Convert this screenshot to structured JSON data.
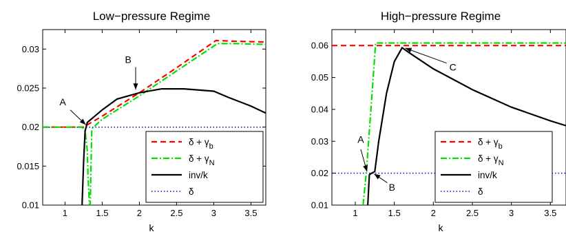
{
  "chart_data": [
    {
      "type": "line",
      "title": "Low−pressure Regime",
      "xlabel": "k",
      "ylabel": "",
      "xlim": [
        0.7,
        3.7
      ],
      "ylim": [
        0.01,
        0.0325
      ],
      "xticks": [
        "1",
        "1.5",
        "2",
        "2.5",
        "3",
        "3.5"
      ],
      "xtick_values": [
        1,
        1.5,
        2,
        2.5,
        3,
        3.5
      ],
      "yticks": [
        "0.01",
        "0.015",
        "0.02",
        "0.025",
        "0.03"
      ],
      "ytick_values": [
        0.01,
        0.015,
        0.02,
        0.025,
        0.03
      ],
      "legend_position": "lower-right",
      "legend": [
        {
          "main": "δ + γ",
          "sub": "b"
        },
        {
          "main": "δ + γ",
          "sub": "N"
        },
        {
          "main": "inv/k",
          "sub": ""
        },
        {
          "main": "δ",
          "sub": ""
        }
      ],
      "series": [
        {
          "color": "#ff0000",
          "dash": "8,5",
          "points": [
            [
              0.7,
              0.02
            ],
            [
              1.27,
              0.02
            ],
            [
              1.3,
              0.0203
            ],
            [
              1.5,
              0.0214
            ],
            [
              2,
              0.0244
            ],
            [
              2.5,
              0.0276
            ],
            [
              3.03,
              0.0311
            ],
            [
              3.3,
              0.031
            ],
            [
              3.7,
              0.0309
            ]
          ]
        },
        {
          "color": "#00dd00",
          "dash": "9,3,2,3",
          "points": [
            [
              0.7,
              0.02
            ],
            [
              1.23,
              0.02
            ],
            [
              1.27,
              0.0195
            ],
            [
              1.3,
              0.017
            ],
            [
              1.31,
              0.0135
            ],
            [
              1.33,
              0.01
            ],
            [
              1.34,
              0.0102
            ],
            [
              1.36,
              0.0198
            ],
            [
              1.5,
              0.021
            ],
            [
              2,
              0.024
            ],
            [
              2.5,
              0.0272
            ],
            [
              3.05,
              0.0307
            ],
            [
              3.3,
              0.0307
            ],
            [
              3.7,
              0.0306
            ]
          ]
        },
        {
          "color": "#000000",
          "dash": "",
          "points": [
            [
              1.23,
              0.01
            ],
            [
              1.25,
              0.0155
            ],
            [
              1.27,
              0.0195
            ],
            [
              1.3,
              0.0206
            ],
            [
              1.4,
              0.0214
            ],
            [
              1.5,
              0.0222
            ],
            [
              1.7,
              0.0236
            ],
            [
              2,
              0.0244
            ],
            [
              2.3,
              0.0249
            ],
            [
              2.6,
              0.0249
            ],
            [
              3,
              0.0246
            ],
            [
              3.2,
              0.0238
            ],
            [
              3.5,
              0.0227
            ],
            [
              3.7,
              0.0218
            ]
          ]
        },
        {
          "color": "#0000cc",
          "dash": "1.5,3",
          "points": [
            [
              0.7,
              0.02
            ],
            [
              3.7,
              0.02
            ]
          ]
        }
      ],
      "annotations": [
        {
          "label": "A",
          "label_at": [
            0.97,
            0.0228
          ],
          "arrow_from": [
            1.07,
            0.0222
          ],
          "arrow_to": [
            1.28,
            0.0203
          ]
        },
        {
          "label": "B",
          "label_at": [
            1.85,
            0.0282
          ],
          "arrow_from": [
            1.95,
            0.0277
          ],
          "arrow_to": [
            1.95,
            0.0248
          ]
        }
      ]
    },
    {
      "type": "line",
      "title": "High−pressure Regime",
      "xlabel": "k",
      "ylabel": "",
      "xlim": [
        0.7,
        3.7
      ],
      "ylim": [
        0.01,
        0.065
      ],
      "xticks": [
        "1",
        "1.5",
        "2",
        "2.5",
        "3",
        "3.5"
      ],
      "xtick_values": [
        1,
        1.5,
        2,
        2.5,
        3,
        3.5
      ],
      "yticks": [
        "0.01",
        "0.02",
        "0.03",
        "0.04",
        "0.05",
        "0.06"
      ],
      "ytick_values": [
        0.01,
        0.02,
        0.03,
        0.04,
        0.05,
        0.06
      ],
      "legend_position": "lower-right",
      "legend": [
        {
          "main": "δ + γ",
          "sub": "b"
        },
        {
          "main": "δ + γ",
          "sub": "N"
        },
        {
          "main": "inv/k",
          "sub": ""
        },
        {
          "main": "δ",
          "sub": ""
        }
      ],
      "series": [
        {
          "color": "#ff0000",
          "dash": "8,5",
          "points": [
            [
              0.7,
              0.06
            ],
            [
              3.7,
              0.06
            ]
          ]
        },
        {
          "color": "#00dd00",
          "dash": "9,3,2,3",
          "points": [
            [
              1.1,
              0.01
            ],
            [
              1.14,
              0.02
            ],
            [
              1.2,
              0.04
            ],
            [
              1.26,
              0.0608
            ],
            [
              1.3,
              0.0608
            ],
            [
              3.7,
              0.0608
            ]
          ]
        },
        {
          "color": "#000000",
          "dash": "",
          "points": [
            [
              1.16,
              0.01
            ],
            [
              1.18,
              0.0195
            ],
            [
              1.21,
              0.02
            ],
            [
              1.25,
              0.0205
            ],
            [
              1.3,
              0.03
            ],
            [
              1.4,
              0.045
            ],
            [
              1.5,
              0.055
            ],
            [
              1.6,
              0.0593
            ],
            [
              1.7,
              0.0576
            ],
            [
              2,
              0.0527
            ],
            [
              2.5,
              0.0462
            ],
            [
              3,
              0.0407
            ],
            [
              3.5,
              0.0364
            ],
            [
              3.7,
              0.0349
            ]
          ]
        },
        {
          "color": "#0000cc",
          "dash": "1.5,3",
          "points": [
            [
              0.7,
              0.02
            ],
            [
              3.7,
              0.02
            ]
          ]
        }
      ],
      "annotations": [
        {
          "label": "A",
          "label_at": [
            1.07,
            0.0295
          ],
          "arrow_from": [
            1.07,
            0.0275
          ],
          "arrow_to": [
            1.15,
            0.0205
          ]
        },
        {
          "label": "B",
          "label_at": [
            1.47,
            0.0145
          ],
          "arrow_from": [
            1.41,
            0.017
          ],
          "arrow_to": [
            1.24,
            0.0198
          ]
        },
        {
          "label": "C",
          "label_at": [
            2.25,
            0.0522
          ],
          "arrow_from": [
            2.17,
            0.0545
          ],
          "arrow_to": [
            1.64,
            0.0592
          ]
        }
      ]
    }
  ]
}
